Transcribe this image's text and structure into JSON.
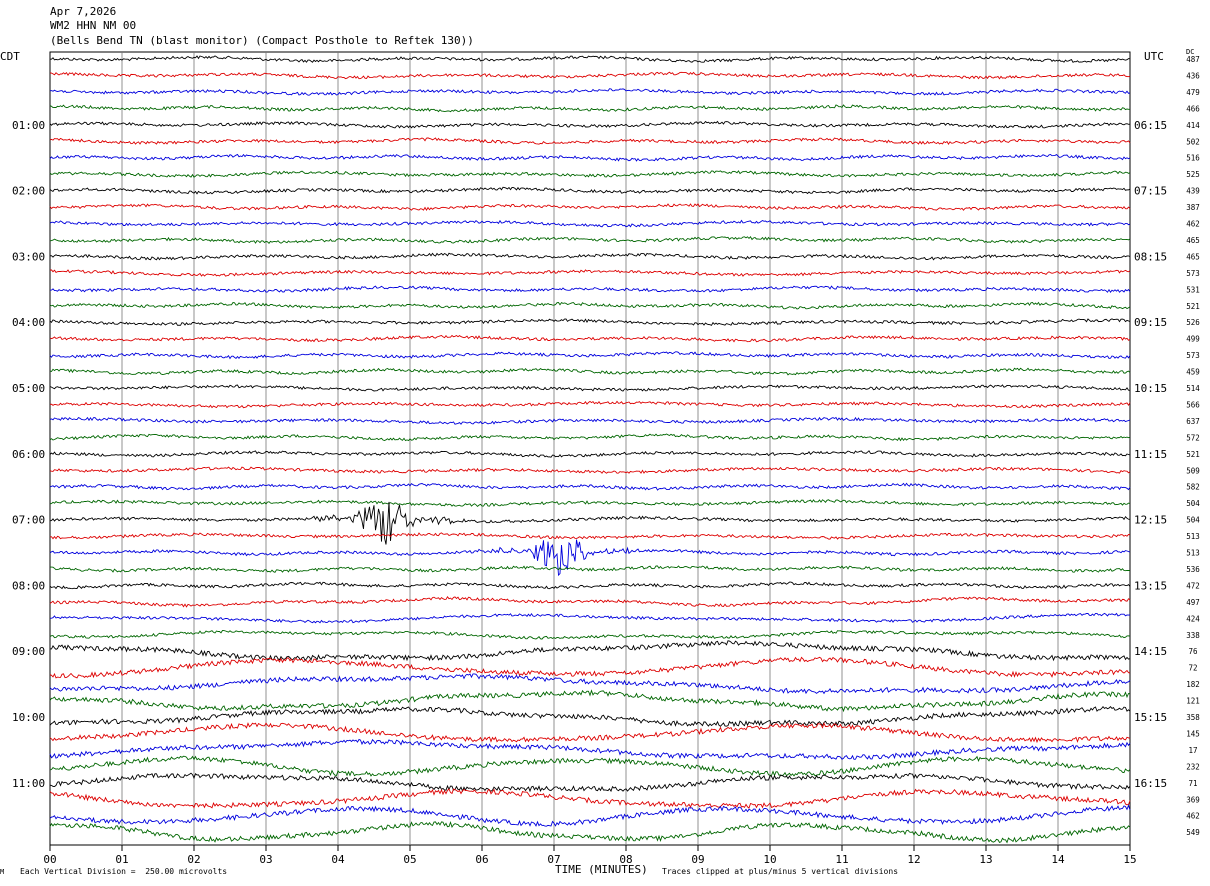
{
  "header": {
    "date": "Apr 7,2026",
    "station": "WM2 HHN NM 00",
    "location": "(Bells Bend TN (blast monitor) (Compact Posthole to Reftek 130))"
  },
  "left_timezone": "CDT",
  "right_timezone": "UTC",
  "dc_label": "DC",
  "footer": {
    "scale": "Each Vertical Division =  250.00 microvolts",
    "clip": "Traces clipped at plus/minus 5 vertical divisions",
    "mark": "M"
  },
  "chart_data": {
    "type": "line",
    "title": "",
    "xlabel": "TIME (MINUTES)",
    "xlim": [
      0,
      15
    ],
    "x_ticks": [
      "00",
      "01",
      "02",
      "03",
      "04",
      "05",
      "06",
      "07",
      "08",
      "09",
      "10",
      "11",
      "12",
      "13",
      "14",
      "15"
    ],
    "trace_colors": [
      "#000000",
      "#dd0000",
      "#0000dd",
      "#006600"
    ],
    "trace_count": 48,
    "left_hour_labels": [
      "01:00",
      "02:00",
      "03:00",
      "04:00",
      "05:00",
      "06:00",
      "07:00",
      "08:00",
      "09:00",
      "10:00",
      "11:00"
    ],
    "right_hour_labels": [
      "06:15",
      "07:15",
      "08:15",
      "09:15",
      "10:15",
      "11:15",
      "12:15",
      "13:15",
      "14:15",
      "15:15",
      "16:15"
    ],
    "dc_offsets": [
      "487",
      "436",
      "479",
      "466",
      "414",
      "502",
      "516",
      "525",
      "439",
      "387",
      "462",
      "465",
      "465",
      "573",
      "531",
      "521",
      "526",
      "499",
      "573",
      "459",
      "514",
      "566",
      "637",
      "572",
      "521",
      "509",
      "582",
      "504",
      "504",
      "513",
      "513",
      "536",
      "472",
      "497",
      "424",
      "338",
      "76",
      "72",
      "182",
      "121",
      "358",
      "145",
      "17",
      "232",
      "71",
      "369",
      "462",
      "549"
    ],
    "events": [
      {
        "name": "blast-1",
        "trace": 28,
        "minute": 4.65
      },
      {
        "name": "blast-2",
        "trace": 30,
        "minute": 7.1
      }
    ]
  }
}
